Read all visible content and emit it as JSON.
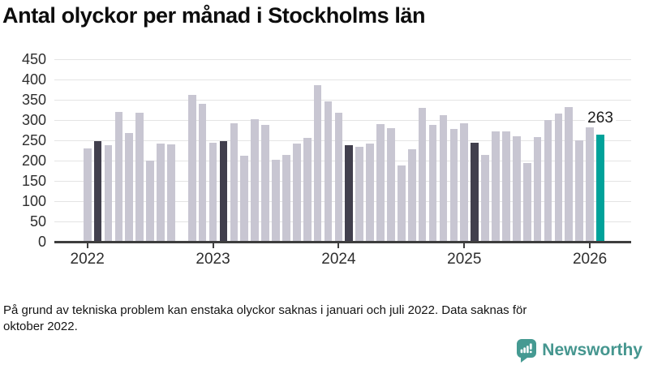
{
  "title": "Antal olyckor per månad i Stockholms län",
  "footnote": {
    "line1": "På grund av tekniska problem kan enstaka olyckor saknas i januari och juli 2022. Data saknas för",
    "line2": "oktober 2022."
  },
  "branding": {
    "name": "Newsworthy",
    "icon": "newsworthy-speech-bubble-chart-icon",
    "color": "#45968f"
  },
  "colors": {
    "bar_normal": "#c8c6d2",
    "bar_highlight_dark": "#413f4d",
    "bar_accent": "#00a29a",
    "axis": "#3e3e3e",
    "grid": "#e4e4e4",
    "tick_text": "#2e2e2e"
  },
  "chart_data": {
    "type": "bar",
    "title": "Antal olyckor per månad i Stockholms län",
    "xlabel": "",
    "ylabel": "",
    "ylim": [
      0,
      450
    ],
    "ytick_step": 50,
    "grid": true,
    "legend": "none",
    "x_unit": "month",
    "points": [
      {
        "m": "2022-01",
        "v": 230,
        "hl": "normal"
      },
      {
        "m": "2022-02",
        "v": 248,
        "hl": "dark"
      },
      {
        "m": "2022-03",
        "v": 237,
        "hl": "normal"
      },
      {
        "m": "2022-04",
        "v": 320,
        "hl": "normal"
      },
      {
        "m": "2022-05",
        "v": 268,
        "hl": "normal"
      },
      {
        "m": "2022-06",
        "v": 317,
        "hl": "normal"
      },
      {
        "m": "2022-07",
        "v": 200,
        "hl": "normal"
      },
      {
        "m": "2022-08",
        "v": 241,
        "hl": "normal"
      },
      {
        "m": "2022-09",
        "v": 240,
        "hl": "normal"
      },
      {
        "m": "2022-10",
        "v": null,
        "hl": "missing"
      },
      {
        "m": "2022-11",
        "v": 361,
        "hl": "normal"
      },
      {
        "m": "2022-12",
        "v": 339,
        "hl": "normal"
      },
      {
        "m": "2023-01",
        "v": 243,
        "hl": "normal"
      },
      {
        "m": "2023-02",
        "v": 248,
        "hl": "dark"
      },
      {
        "m": "2023-03",
        "v": 292,
        "hl": "normal"
      },
      {
        "m": "2023-04",
        "v": 211,
        "hl": "normal"
      },
      {
        "m": "2023-05",
        "v": 301,
        "hl": "normal"
      },
      {
        "m": "2023-06",
        "v": 287,
        "hl": "normal"
      },
      {
        "m": "2023-07",
        "v": 202,
        "hl": "normal"
      },
      {
        "m": "2023-08",
        "v": 214,
        "hl": "normal"
      },
      {
        "m": "2023-09",
        "v": 241,
        "hl": "normal"
      },
      {
        "m": "2023-10",
        "v": 255,
        "hl": "normal"
      },
      {
        "m": "2023-11",
        "v": 385,
        "hl": "normal"
      },
      {
        "m": "2023-12",
        "v": 345,
        "hl": "normal"
      },
      {
        "m": "2024-01",
        "v": 317,
        "hl": "normal"
      },
      {
        "m": "2024-02",
        "v": 237,
        "hl": "dark"
      },
      {
        "m": "2024-03",
        "v": 234,
        "hl": "normal"
      },
      {
        "m": "2024-04",
        "v": 241,
        "hl": "normal"
      },
      {
        "m": "2024-05",
        "v": 289,
        "hl": "normal"
      },
      {
        "m": "2024-06",
        "v": 279,
        "hl": "normal"
      },
      {
        "m": "2024-07",
        "v": 187,
        "hl": "normal"
      },
      {
        "m": "2024-08",
        "v": 227,
        "hl": "normal"
      },
      {
        "m": "2024-09",
        "v": 330,
        "hl": "normal"
      },
      {
        "m": "2024-10",
        "v": 287,
        "hl": "normal"
      },
      {
        "m": "2024-11",
        "v": 312,
        "hl": "normal"
      },
      {
        "m": "2024-12",
        "v": 277,
        "hl": "normal"
      },
      {
        "m": "2025-01",
        "v": 292,
        "hl": "normal"
      },
      {
        "m": "2025-02",
        "v": 244,
        "hl": "dark"
      },
      {
        "m": "2025-03",
        "v": 213,
        "hl": "normal"
      },
      {
        "m": "2025-04",
        "v": 272,
        "hl": "normal"
      },
      {
        "m": "2025-05",
        "v": 271,
        "hl": "normal"
      },
      {
        "m": "2025-06",
        "v": 259,
        "hl": "normal"
      },
      {
        "m": "2025-07",
        "v": 193,
        "hl": "normal"
      },
      {
        "m": "2025-08",
        "v": 257,
        "hl": "normal"
      },
      {
        "m": "2025-09",
        "v": 300,
        "hl": "normal"
      },
      {
        "m": "2025-10",
        "v": 315,
        "hl": "normal"
      },
      {
        "m": "2025-11",
        "v": 331,
        "hl": "normal"
      },
      {
        "m": "2025-12",
        "v": 249,
        "hl": "normal"
      },
      {
        "m": "2026-01",
        "v": 284,
        "hl": "normal"
      },
      {
        "m": "2026-02",
        "v": 263,
        "hl": "accent"
      }
    ],
    "year_ticks": [
      {
        "label": "2022",
        "index": 0
      },
      {
        "label": "2023",
        "index": 12
      },
      {
        "label": "2024",
        "index": 24
      },
      {
        "label": "2025",
        "index": 36
      },
      {
        "label": "2026",
        "index": 48
      }
    ],
    "annotation": {
      "text": "263",
      "index": 49
    }
  }
}
